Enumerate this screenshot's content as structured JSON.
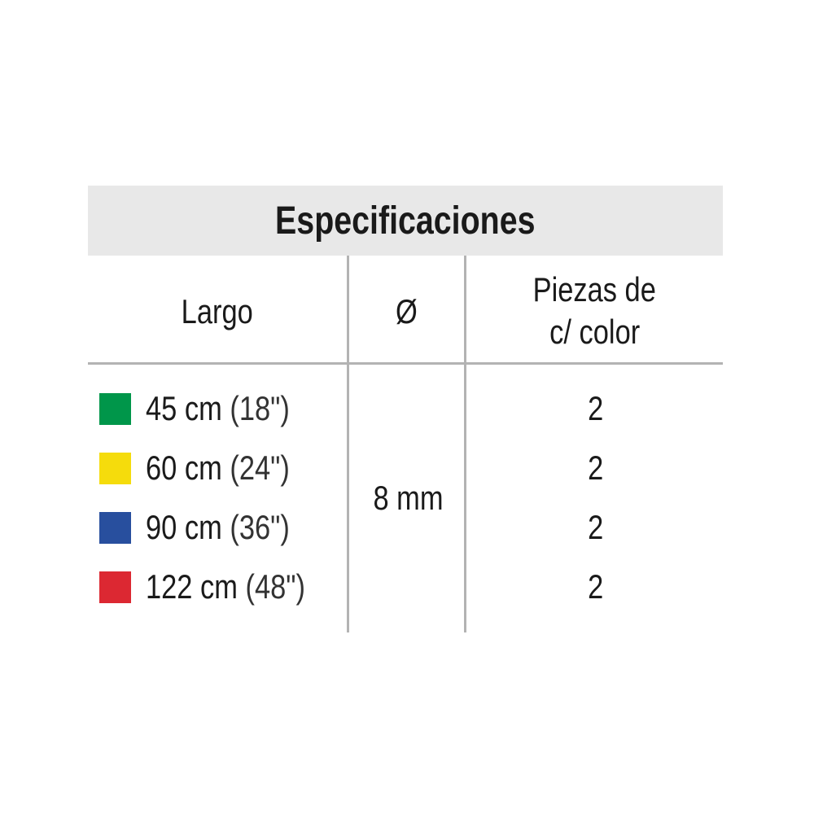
{
  "title": "Especificaciones",
  "headers": {
    "largo": "Largo",
    "diameter": "Ø",
    "pieces_line1": "Piezas de",
    "pieces_line2": "c/ color"
  },
  "diameter_value": "8 mm",
  "rows": [
    {
      "length": "45 cm",
      "inches": "(18\")",
      "color": "#00964a",
      "color_name": "green",
      "pieces": "2"
    },
    {
      "length": "60 cm",
      "inches": "(24\")",
      "color": "#f5dc0c",
      "color_name": "yellow",
      "pieces": "2"
    },
    {
      "length": "90 cm",
      "inches": "(36\")",
      "color": "#284f9e",
      "color_name": "blue",
      "pieces": "2"
    },
    {
      "length": "122 cm",
      "inches": "(48\")",
      "color": "#dc2832",
      "color_name": "red",
      "pieces": "2"
    }
  ]
}
